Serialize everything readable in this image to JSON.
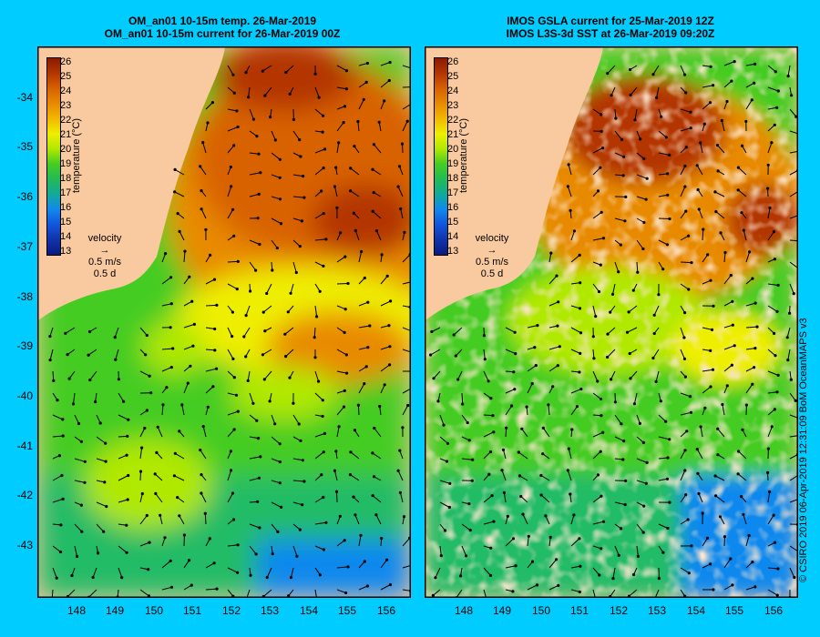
{
  "left_panel": {
    "title_line1": "OM_an01 10-15m temp. 26-Mar-2019",
    "title_line2": "OM_an01 10-15m current for 26-Mar-2019 00Z"
  },
  "right_panel": {
    "title_line1": "IMOS GSLA current for 25-Mar-2019 12Z",
    "title_line2": "IMOS L3S-3d SST at 26-Mar-2019 09:20Z"
  },
  "latitudes": [
    "-34",
    "-35",
    "-36",
    "-37",
    "-38",
    "-39",
    "-40",
    "-41",
    "-42",
    "-43"
  ],
  "longitudes": [
    "148",
    "149",
    "150",
    "151",
    "152",
    "153",
    "154",
    "155",
    "156"
  ],
  "colorbar": {
    "title": "temperature (°C)",
    "ticks": [
      "26",
      "25",
      "24",
      "23",
      "22",
      "21",
      "20",
      "19",
      "18",
      "17",
      "16",
      "15",
      "14",
      "13"
    ],
    "colors": [
      "#8b1a00",
      "#b33600",
      "#d86200",
      "#e88a00",
      "#f2b800",
      "#eeee00",
      "#b0e800",
      "#44cc22",
      "#22bb55",
      "#11aa99",
      "#1188ee",
      "#1155dd",
      "#1133aa",
      "#0a1a80"
    ]
  },
  "velocity_legend": {
    "label": "velocity",
    "speed": "0.5 m/s",
    "time": "0.5 d"
  },
  "credit": "© CSIRO 2019   06-Apr-2019 12:31:09 BoM OceanMAPS v3",
  "colors": {
    "background": "#00ccff",
    "land": "#f9caa0"
  }
}
